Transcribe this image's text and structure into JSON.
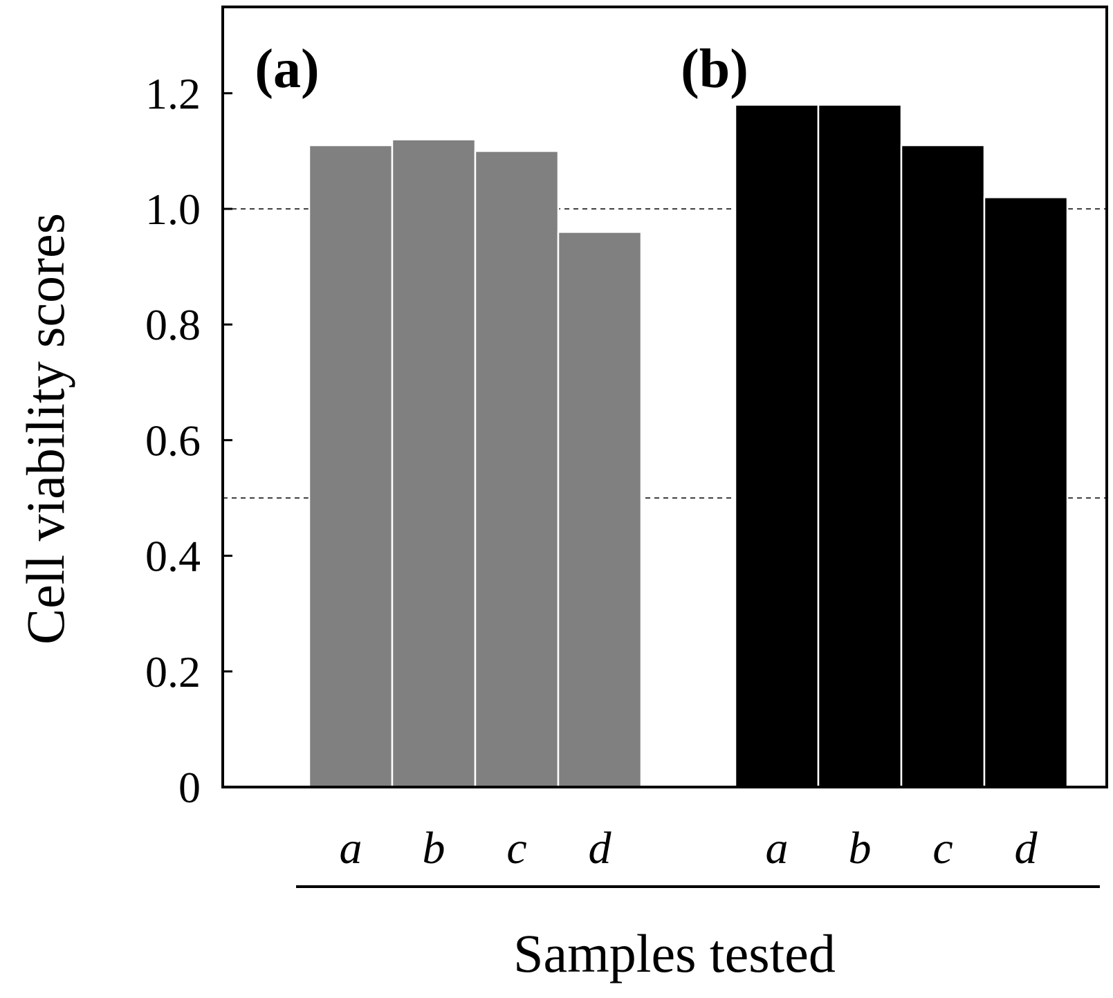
{
  "chart_data": {
    "type": "bar",
    "title": "",
    "xlabel": "Samples tested",
    "ylabel": "Cell viability scores",
    "ylim": [
      0,
      1.35
    ],
    "yticks": [
      0,
      0.2,
      0.4,
      0.6,
      0.8,
      1.0,
      1.2
    ],
    "ytick_labels": [
      "0",
      "0.2",
      "0.4",
      "0.6",
      "0.8",
      "1.0",
      "1.2"
    ],
    "reference_lines": [
      1.0,
      0.5
    ],
    "grid": false,
    "groups": [
      {
        "name": "(a)",
        "color": "#808080",
        "categories": [
          "a",
          "b",
          "c",
          "d"
        ],
        "values": [
          1.11,
          1.12,
          1.1,
          0.96
        ]
      },
      {
        "name": "(b)",
        "color": "#000000",
        "categories": [
          "a",
          "b",
          "c",
          "d"
        ],
        "values": [
          1.18,
          1.18,
          1.11,
          1.02
        ]
      }
    ]
  }
}
